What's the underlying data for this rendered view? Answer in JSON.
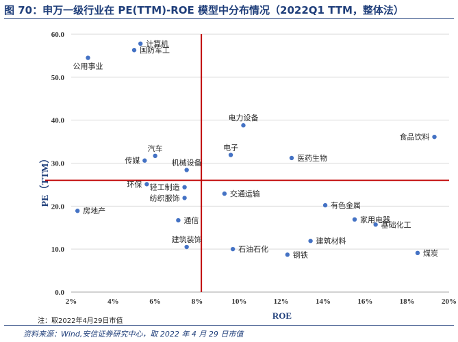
{
  "header": {
    "title": "图 70：申万一级行业在 PE(TTM)-ROE 模型中分布情况（2022Q1 TTM，整体法）"
  },
  "footer": {
    "note": "注：取2022年4月29日市值",
    "source": "资料来源：Wind,安信证券研究中心，取 2022 年 4 月 29 日市值"
  },
  "colors": {
    "point": "#4472c4",
    "divider": "#c00000",
    "gridline": "#d9d9d9",
    "axis_title": "#1f3e7a"
  },
  "chart_data": {
    "type": "scatter",
    "title": "申万一级行业在 PE(TTM)-ROE 模型中分布情况（2022Q1 TTM，整体法）",
    "xlabel": "ROE",
    "ylabel": "PE（TTM）",
    "xlim": [
      0.02,
      0.2
    ],
    "ylim": [
      0,
      60
    ],
    "x_ticks": [
      0.02,
      0.04,
      0.06,
      0.08,
      0.1,
      0.12,
      0.14,
      0.16,
      0.18,
      0.2
    ],
    "x_tick_labels": [
      "2%",
      "4%",
      "6%",
      "8%",
      "10%",
      "12%",
      "14%",
      "16%",
      "18%",
      "20%"
    ],
    "y_ticks": [
      0,
      10,
      20,
      30,
      40,
      50,
      60
    ],
    "y_tick_labels": [
      "0.0",
      "10.0",
      "20.0",
      "30.0",
      "40.0",
      "50.0",
      "60.0"
    ],
    "grid": "horizontal",
    "reference_lines": {
      "x": 0.082,
      "y": 26
    },
    "points": [
      {
        "name": "计算机",
        "roe": 0.053,
        "pe": 57.8,
        "label_pos": "right"
      },
      {
        "name": "国防军工",
        "roe": 0.05,
        "pe": 56.3,
        "label_pos": "right"
      },
      {
        "name": "公用事业",
        "roe": 0.028,
        "pe": 54.5,
        "label_pos": "below"
      },
      {
        "name": "电力设备",
        "roe": 0.102,
        "pe": 38.8,
        "label_pos": "above"
      },
      {
        "name": "食品饮料",
        "roe": 0.193,
        "pe": 36.1,
        "label_pos": "left"
      },
      {
        "name": "电子",
        "roe": 0.096,
        "pe": 31.9,
        "label_pos": "above"
      },
      {
        "name": "汽车",
        "roe": 0.06,
        "pe": 31.7,
        "label_pos": "above"
      },
      {
        "name": "医药生物",
        "roe": 0.125,
        "pe": 31.2,
        "label_pos": "right"
      },
      {
        "name": "传媒",
        "roe": 0.055,
        "pe": 30.6,
        "label_pos": "left"
      },
      {
        "name": "机械设备",
        "roe": 0.075,
        "pe": 28.4,
        "label_pos": "above"
      },
      {
        "name": "环保",
        "roe": 0.056,
        "pe": 25.1,
        "label_pos": "left"
      },
      {
        "name": "轻工制造",
        "roe": 0.074,
        "pe": 24.4,
        "label_pos": "left"
      },
      {
        "name": "交通运输",
        "roe": 0.093,
        "pe": 22.9,
        "label_pos": "right"
      },
      {
        "name": "纺织服饰",
        "roe": 0.074,
        "pe": 21.9,
        "label_pos": "left"
      },
      {
        "name": "有色金属",
        "roe": 0.141,
        "pe": 20.2,
        "label_pos": "right"
      },
      {
        "name": "房地产",
        "roe": 0.023,
        "pe": 18.9,
        "label_pos": "right"
      },
      {
        "name": "家用电器",
        "roe": 0.155,
        "pe": 16.9,
        "label_pos": "right"
      },
      {
        "name": "通信",
        "roe": 0.071,
        "pe": 16.7,
        "label_pos": "right"
      },
      {
        "name": "基础化工",
        "roe": 0.165,
        "pe": 15.7,
        "label_pos": "right"
      },
      {
        "name": "建筑材料",
        "roe": 0.134,
        "pe": 11.9,
        "label_pos": "right"
      },
      {
        "name": "建筑装饰",
        "roe": 0.075,
        "pe": 10.5,
        "label_pos": "above"
      },
      {
        "name": "石油石化",
        "roe": 0.097,
        "pe": 10.0,
        "label_pos": "right"
      },
      {
        "name": "煤炭",
        "roe": 0.185,
        "pe": 9.1,
        "label_pos": "right"
      },
      {
        "name": "钢铁",
        "roe": 0.123,
        "pe": 8.7,
        "label_pos": "right"
      }
    ]
  }
}
